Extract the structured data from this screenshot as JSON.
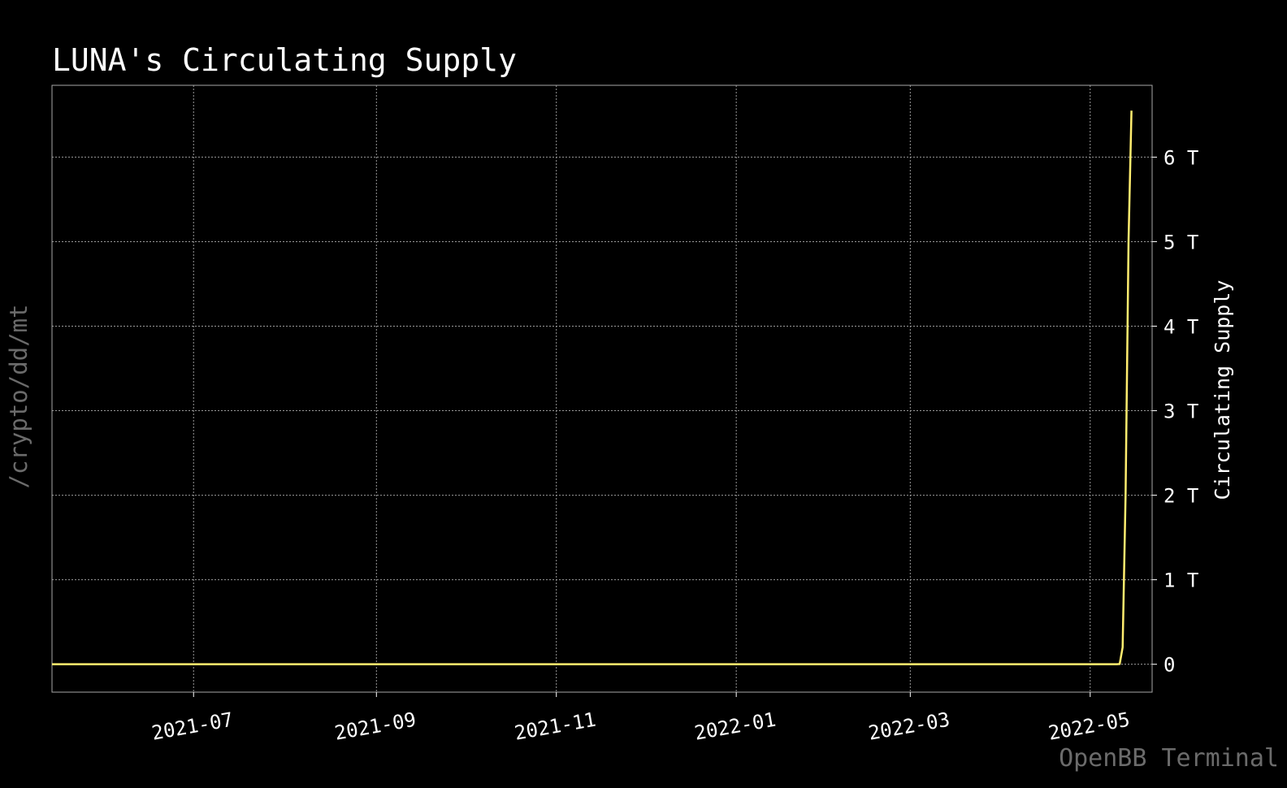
{
  "command_path": "/crypto/dd/mt",
  "watermark": "OpenBB Terminal",
  "colors": {
    "background": "#000000",
    "line": "#ffed6f",
    "text": "#ffffff",
    "muted": "#6b6b6b"
  },
  "chart_data": {
    "type": "line",
    "title": "LUNA's Circulating Supply",
    "xlabel": "",
    "ylabel": "Circulating Supply",
    "y_axis_side": "right",
    "grid": true,
    "xlim": [
      "2021-05-14",
      "2022-05-22"
    ],
    "ylim": [
      -0.33,
      6.85
    ],
    "y_unit": "T",
    "x_ticks": [
      "2021-07",
      "2021-09",
      "2021-11",
      "2022-01",
      "2022-03",
      "2022-05"
    ],
    "x_tick_dates": [
      "2021-07-01",
      "2021-09-01",
      "2021-11-01",
      "2022-01-01",
      "2022-03-01",
      "2022-05-01"
    ],
    "y_ticks": [
      0,
      1,
      2,
      3,
      4,
      5,
      6
    ],
    "y_tick_labels": [
      "0",
      "1 T",
      "2 T",
      "3 T",
      "4 T",
      "5 T",
      "6 T"
    ],
    "series": [
      {
        "color": "#ffed6f",
        "x": [
          "2021-05-14",
          "2021-07-01",
          "2021-09-01",
          "2021-11-01",
          "2022-01-01",
          "2022-03-01",
          "2022-05-01",
          "2022-05-10",
          "2022-05-11",
          "2022-05-12",
          "2022-05-13",
          "2022-05-14",
          "2022-05-15"
        ],
        "y": [
          0,
          0,
          0,
          0,
          0,
          0,
          0,
          0,
          0.003,
          0.2,
          2.0,
          5.0,
          6.55
        ]
      }
    ]
  }
}
